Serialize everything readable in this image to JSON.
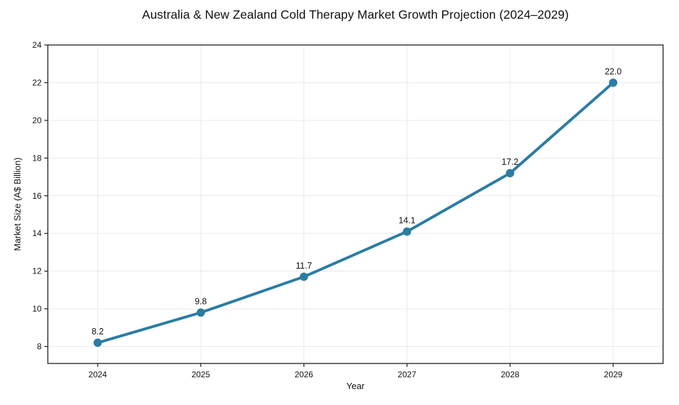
{
  "chart_data": {
    "type": "line",
    "title": "Australia & New Zealand Cold Therapy Market Growth Projection (2024–2029)",
    "xlabel": "Year",
    "ylabel": "Market Size (A$ Billion)",
    "x": [
      2024,
      2025,
      2026,
      2027,
      2028,
      2029
    ],
    "series": [
      {
        "name": "Market Size (A$ Billion)",
        "values": [
          8.2,
          9.8,
          11.7,
          14.1,
          17.2,
          22.0
        ]
      }
    ],
    "point_labels": [
      "8.2",
      "9.8",
      "11.7",
      "14.1",
      "17.2",
      "22.0"
    ],
    "yticks": [
      8,
      10,
      12,
      14,
      16,
      18,
      20,
      22,
      24
    ],
    "ylim": [
      7.1,
      24
    ],
    "grid": true,
    "legend": false,
    "line_color": "#2b7ca3",
    "grid_color": "#e9e9e9",
    "axis_color": "#1a1a1a",
    "text_color": "#111111"
  }
}
